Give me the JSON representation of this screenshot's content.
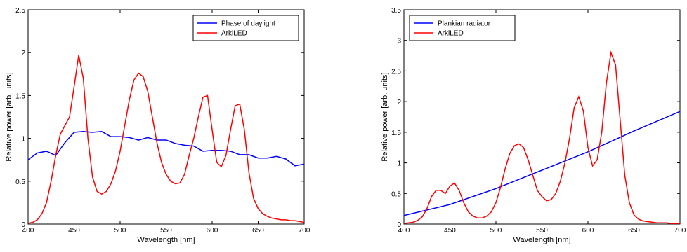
{
  "chart_data": [
    {
      "type": "line",
      "xlabel": "Wavelength [nm]",
      "ylabel": "Relative power [arb. units]",
      "xlim": [
        400,
        700
      ],
      "xticks": [
        400,
        450,
        500,
        550,
        600,
        650,
        700
      ],
      "ylim": [
        0,
        2.5
      ],
      "yticks": [
        0,
        0.5,
        1,
        1.5,
        2,
        2.5
      ],
      "grid": false,
      "legend": "upper right",
      "series": [
        {
          "name": "Phase of daylight",
          "color": "#0000ff",
          "x": [
            400,
            410,
            420,
            430,
            440,
            450,
            460,
            470,
            480,
            490,
            500,
            510,
            520,
            530,
            540,
            550,
            560,
            570,
            580,
            590,
            600,
            610,
            620,
            630,
            640,
            650,
            660,
            670,
            680,
            690,
            700
          ],
          "values": [
            0.75,
            0.83,
            0.85,
            0.8,
            0.95,
            1.07,
            1.08,
            1.07,
            1.08,
            1.02,
            1.02,
            1.01,
            0.98,
            1.01,
            0.98,
            0.98,
            0.94,
            0.92,
            0.91,
            0.85,
            0.86,
            0.86,
            0.85,
            0.81,
            0.81,
            0.77,
            0.77,
            0.79,
            0.76,
            0.68,
            0.7
          ]
        },
        {
          "name": "ArkiLED",
          "color": "#ff0000",
          "x": [
            400,
            405,
            410,
            415,
            420,
            425,
            430,
            435,
            440,
            445,
            450,
            455,
            460,
            465,
            470,
            475,
            480,
            485,
            490,
            495,
            500,
            505,
            510,
            515,
            520,
            525,
            530,
            535,
            540,
            545,
            550,
            555,
            560,
            565,
            570,
            575,
            580,
            585,
            590,
            595,
            600,
            605,
            610,
            615,
            620,
            625,
            630,
            635,
            640,
            645,
            650,
            655,
            660,
            665,
            670,
            675,
            680,
            685,
            690,
            695,
            700
          ],
          "values": [
            0.01,
            0.02,
            0.05,
            0.12,
            0.25,
            0.5,
            0.8,
            1.05,
            1.15,
            1.25,
            1.6,
            1.97,
            1.7,
            1.0,
            0.55,
            0.38,
            0.35,
            0.38,
            0.47,
            0.62,
            0.85,
            1.15,
            1.45,
            1.68,
            1.76,
            1.72,
            1.55,
            1.25,
            0.95,
            0.72,
            0.58,
            0.5,
            0.47,
            0.48,
            0.58,
            0.8,
            1.0,
            1.25,
            1.48,
            1.5,
            1.1,
            0.72,
            0.67,
            0.8,
            1.1,
            1.38,
            1.4,
            1.1,
            0.6,
            0.3,
            0.18,
            0.12,
            0.09,
            0.07,
            0.06,
            0.05,
            0.05,
            0.04,
            0.04,
            0.03,
            0.02
          ]
        }
      ]
    },
    {
      "type": "line",
      "xlabel": "Wavelength [nm]",
      "ylabel": "Relative power [arb. units]",
      "xlim": [
        400,
        700
      ],
      "xticks": [
        400,
        450,
        500,
        550,
        600,
        650,
        700
      ],
      "ylim": [
        0,
        3.5
      ],
      "yticks": [
        0,
        0.5,
        1,
        1.5,
        2,
        2.5,
        3,
        3.5
      ],
      "grid": false,
      "legend": "upper left",
      "series": [
        {
          "name": "Plankian radiator",
          "color": "#0000ff",
          "x": [
            400,
            450,
            500,
            550,
            600,
            650,
            700
          ],
          "values": [
            0.14,
            0.32,
            0.58,
            0.88,
            1.18,
            1.52,
            1.84
          ]
        },
        {
          "name": "ArkiLED",
          "color": "#ff0000",
          "x": [
            400,
            405,
            410,
            415,
            420,
            425,
            430,
            435,
            440,
            445,
            450,
            455,
            460,
            465,
            470,
            475,
            480,
            485,
            490,
            495,
            500,
            505,
            510,
            515,
            520,
            525,
            530,
            535,
            540,
            545,
            550,
            555,
            560,
            565,
            570,
            575,
            580,
            585,
            590,
            595,
            600,
            605,
            610,
            615,
            620,
            625,
            630,
            635,
            640,
            645,
            650,
            655,
            660,
            665,
            670,
            675,
            680,
            685,
            690,
            695,
            700
          ],
          "values": [
            0.01,
            0.02,
            0.03,
            0.06,
            0.12,
            0.25,
            0.45,
            0.55,
            0.55,
            0.5,
            0.62,
            0.67,
            0.55,
            0.35,
            0.2,
            0.13,
            0.1,
            0.1,
            0.13,
            0.2,
            0.35,
            0.6,
            0.9,
            1.15,
            1.28,
            1.31,
            1.25,
            1.05,
            0.8,
            0.55,
            0.45,
            0.38,
            0.4,
            0.5,
            0.7,
            1.0,
            1.4,
            1.9,
            2.08,
            1.85,
            1.25,
            0.95,
            1.05,
            1.5,
            2.3,
            2.8,
            2.6,
            1.7,
            0.8,
            0.35,
            0.15,
            0.08,
            0.05,
            0.04,
            0.03,
            0.02,
            0.02,
            0.02,
            0.01,
            0.01,
            0.01
          ]
        }
      ]
    }
  ]
}
